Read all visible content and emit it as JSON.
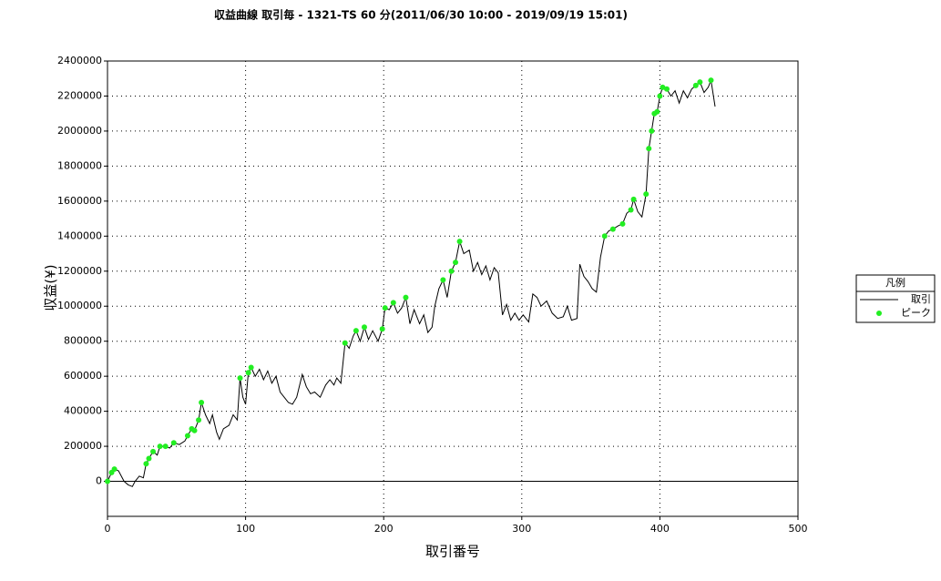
{
  "chart_data": {
    "type": "line",
    "title": "収益曲線 取引毎  - 1321-TS 60 分(2011/06/30 10:00 - 2019/09/19 15:01)",
    "x_label": "取引番号",
    "y_label": "収益(¥)",
    "legend_title": "凡例",
    "legend": "right",
    "grid": true,
    "xlim": [
      0,
      500
    ],
    "xticks": [
      0,
      100,
      200,
      300,
      400,
      500
    ],
    "ylim": [
      -200000,
      2400000
    ],
    "yticks": [
      0,
      200000,
      400000,
      600000,
      800000,
      1000000,
      1200000,
      1400000,
      1600000,
      1800000,
      2000000,
      2200000,
      2400000
    ],
    "series": [
      {
        "name": "取引",
        "color": "#000000",
        "type": "line",
        "x": [
          0,
          3,
          5,
          8,
          12,
          15,
          18,
          20,
          23,
          26,
          28,
          30,
          33,
          36,
          38,
          42,
          45,
          48,
          52,
          56,
          58,
          61,
          63,
          66,
          68,
          71,
          74,
          76,
          79,
          81,
          84,
          88,
          91,
          94,
          96,
          98,
          100,
          102,
          104,
          107,
          110,
          113,
          116,
          119,
          122,
          125,
          128,
          131,
          134,
          137,
          141,
          144,
          147,
          150,
          154,
          158,
          161,
          164,
          166,
          169,
          172,
          175,
          178,
          180,
          183,
          186,
          189,
          192,
          196,
          199,
          201,
          204,
          207,
          210,
          213,
          216,
          219,
          222,
          226,
          229,
          232,
          235,
          237,
          240,
          243,
          246,
          249,
          252,
          255,
          258,
          262,
          265,
          268,
          271,
          274,
          277,
          280,
          283,
          286,
          289,
          292,
          295,
          298,
          301,
          305,
          308,
          311,
          314,
          318,
          322,
          326,
          330,
          333,
          336,
          340,
          342,
          345,
          348,
          351,
          354,
          357,
          360,
          363,
          366,
          370,
          373,
          376,
          379,
          381,
          384,
          387,
          390,
          392,
          394,
          396,
          398,
          400,
          402,
          405,
          408,
          411,
          414,
          417,
          420,
          423,
          426,
          429,
          432,
          435,
          437,
          440
        ],
        "values": [
          0,
          50000,
          70000,
          60000,
          0,
          -20000,
          -30000,
          0,
          30000,
          20000,
          100000,
          130000,
          170000,
          150000,
          200000,
          200000,
          190000,
          220000,
          210000,
          230000,
          260000,
          300000,
          290000,
          350000,
          450000,
          380000,
          330000,
          380000,
          280000,
          240000,
          300000,
          320000,
          380000,
          350000,
          590000,
          480000,
          440000,
          620000,
          650000,
          600000,
          640000,
          580000,
          630000,
          560000,
          600000,
          510000,
          480000,
          450000,
          440000,
          480000,
          610000,
          540000,
          500000,
          510000,
          480000,
          550000,
          580000,
          550000,
          590000,
          560000,
          790000,
          760000,
          830000,
          860000,
          800000,
          880000,
          810000,
          860000,
          800000,
          870000,
          990000,
          980000,
          1020000,
          960000,
          990000,
          1050000,
          900000,
          980000,
          900000,
          950000,
          850000,
          880000,
          1000000,
          1100000,
          1150000,
          1050000,
          1200000,
          1250000,
          1370000,
          1300000,
          1320000,
          1200000,
          1250000,
          1180000,
          1230000,
          1150000,
          1220000,
          1190000,
          950000,
          1010000,
          920000,
          960000,
          920000,
          950000,
          910000,
          1070000,
          1050000,
          1000000,
          1030000,
          960000,
          930000,
          940000,
          1000000,
          920000,
          930000,
          1240000,
          1170000,
          1140000,
          1100000,
          1080000,
          1280000,
          1400000,
          1430000,
          1440000,
          1460000,
          1470000,
          1530000,
          1550000,
          1610000,
          1540000,
          1510000,
          1640000,
          1900000,
          2000000,
          2100000,
          2110000,
          2200000,
          2250000,
          2240000,
          2200000,
          2230000,
          2160000,
          2230000,
          2190000,
          2240000,
          2260000,
          2280000,
          2220000,
          2250000,
          2290000,
          2140000
        ]
      },
      {
        "name": "ピーク",
        "color": "#22ee22",
        "type": "scatter",
        "x": [
          0,
          3,
          5,
          28,
          30,
          33,
          38,
          42,
          48,
          58,
          61,
          63,
          66,
          68,
          96,
          102,
          104,
          172,
          180,
          186,
          199,
          201,
          207,
          216,
          243,
          249,
          252,
          255,
          360,
          366,
          373,
          379,
          381,
          390,
          392,
          394,
          396,
          398,
          400,
          402,
          405,
          426,
          429,
          437
        ],
        "values": [
          0,
          50000,
          70000,
          100000,
          130000,
          170000,
          200000,
          200000,
          220000,
          260000,
          300000,
          290000,
          350000,
          450000,
          590000,
          620000,
          650000,
          790000,
          860000,
          880000,
          870000,
          990000,
          1020000,
          1050000,
          1150000,
          1200000,
          1250000,
          1370000,
          1400000,
          1440000,
          1470000,
          1550000,
          1610000,
          1640000,
          1900000,
          2000000,
          2100000,
          2110000,
          2200000,
          2250000,
          2240000,
          2260000,
          2280000,
          2290000
        ]
      }
    ]
  }
}
